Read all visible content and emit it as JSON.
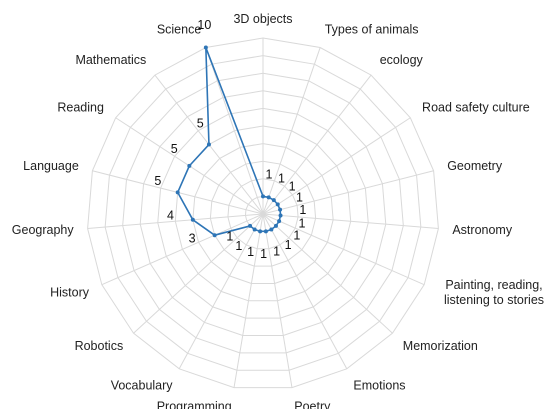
{
  "chart_data": {
    "type": "radar",
    "title": "",
    "categories": [
      "3D objects",
      "Types of animals",
      "ecology",
      "Road safety culture",
      "Geometry",
      "Astronomy",
      [
        "Painting, reading,",
        "listening to stories"
      ],
      "Memorization",
      "Emotions",
      "Poetry",
      "Programming",
      "Vocabulary",
      "Robotics",
      "History",
      "Geography",
      "Language",
      "Reading",
      "Mathematics",
      "Science"
    ],
    "series": [
      {
        "values": [
          1,
          1,
          1,
          1,
          1,
          1,
          1,
          1,
          1,
          1,
          1,
          1,
          1,
          3,
          4,
          5,
          5,
          5,
          10
        ]
      }
    ],
    "rlim": [
      0,
      10
    ],
    "grid": true,
    "legend": "none",
    "colors": {
      "series": "#2e75b6",
      "grid": "#d9d9d9",
      "text": "#222222"
    }
  }
}
